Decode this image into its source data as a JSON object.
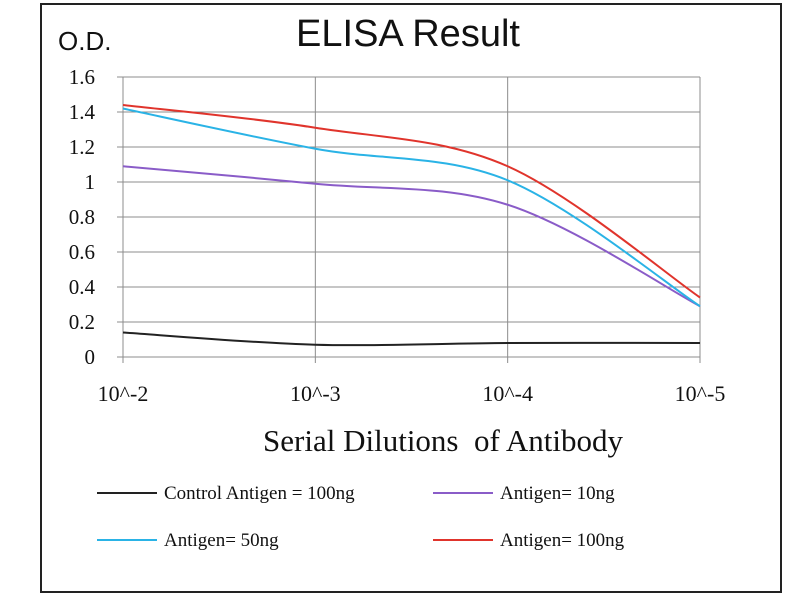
{
  "chart_data": {
    "type": "line",
    "title": "ELISA Result",
    "ylabel": "O.D.",
    "xlabel": "Serial Dilutions  of Antibody",
    "categories": [
      "10^-2",
      "10^-3",
      "10^-4",
      "10^-5"
    ],
    "ylim": [
      0,
      1.6
    ],
    "yticks": [
      "0",
      "0.2",
      "0.4",
      "0.6",
      "0.8",
      "1",
      "1.2",
      "1.4",
      "1.6"
    ],
    "grid": true,
    "legend_position": "bottom",
    "series": [
      {
        "name": "Control Antigen = 100ng",
        "color": "#222222",
        "values": [
          0.14,
          0.07,
          0.08,
          0.08
        ]
      },
      {
        "name": "Antigen= 10ng",
        "color": "#8a5cc8",
        "values": [
          1.09,
          0.99,
          0.87,
          0.29
        ]
      },
      {
        "name": "Antigen= 50ng",
        "color": "#2ab3e6",
        "values": [
          1.42,
          1.19,
          1.01,
          0.29
        ]
      },
      {
        "name": "Antigen= 100ng",
        "color": "#e0342c",
        "values": [
          1.44,
          1.31,
          1.09,
          0.34
        ]
      }
    ]
  }
}
